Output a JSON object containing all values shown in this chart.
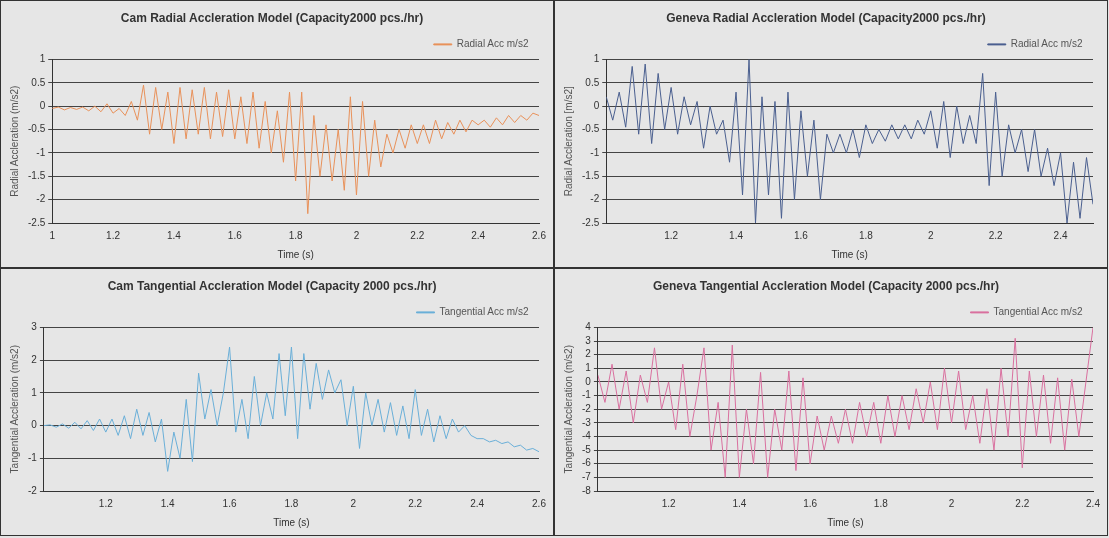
{
  "chart_data": [
    {
      "type": "line",
      "title": "Cam Radial Accleration Model (Capacity2000 pcs./hr)",
      "xlabel": "Time (s)",
      "ylabel": "Radial Accleration (m/s2)",
      "xlim": [
        1,
        2.6
      ],
      "xticks": [
        1,
        1.2,
        1.4,
        1.6,
        1.8,
        2,
        2.2,
        2.4,
        2.6
      ],
      "ylim": [
        -2.5,
        1
      ],
      "yticks": [
        -2.5,
        -2,
        -1.5,
        -1,
        -0.5,
        0,
        0.5,
        1
      ],
      "grid": "y",
      "legend": "top right",
      "marker": "none",
      "x": [
        1,
        1.02,
        1.04,
        1.06,
        1.08,
        1.1,
        1.12,
        1.14,
        1.16,
        1.18,
        1.2,
        1.22,
        1.24,
        1.26,
        1.28,
        1.3,
        1.32,
        1.34,
        1.36,
        1.38,
        1.4,
        1.42,
        1.44,
        1.46,
        1.48,
        1.5,
        1.52,
        1.54,
        1.56,
        1.58,
        1.6,
        1.62,
        1.64,
        1.66,
        1.68,
        1.7,
        1.72,
        1.74,
        1.76,
        1.78,
        1.8,
        1.82,
        1.84,
        1.86,
        1.88,
        1.9,
        1.92,
        1.94,
        1.96,
        1.98,
        2,
        2.02,
        2.04,
        2.06,
        2.08,
        2.1,
        2.12,
        2.14,
        2.16,
        2.18,
        2.2,
        2.22,
        2.24,
        2.26,
        2.28,
        2.3,
        2.32,
        2.34,
        2.36,
        2.38,
        2.4,
        2.42,
        2.44,
        2.46,
        2.48,
        2.5,
        2.52,
        2.54,
        2.56,
        2.58,
        2.6
      ],
      "series": [
        {
          "name": "Radial Acc m/s2",
          "color": "#e8915a",
          "values": [
            -0.05,
            -0.02,
            -0.08,
            -0.03,
            -0.07,
            -0.02,
            -0.1,
            0.0,
            -0.12,
            0.05,
            -0.15,
            -0.05,
            -0.2,
            0.1,
            -0.3,
            0.45,
            -0.6,
            0.4,
            -0.5,
            0.3,
            -0.8,
            0.4,
            -0.7,
            0.35,
            -0.6,
            0.4,
            -0.7,
            0.3,
            -0.65,
            0.35,
            -0.7,
            0.2,
            -0.8,
            0.3,
            -0.9,
            0.1,
            -1.0,
            -0.1,
            -1.2,
            0.3,
            -1.6,
            0.3,
            -2.3,
            -0.2,
            -1.5,
            -0.4,
            -1.6,
            -0.5,
            -1.8,
            0.2,
            -1.9,
            0.1,
            -1.5,
            -0.3,
            -1.3,
            -0.6,
            -1.0,
            -0.5,
            -0.9,
            -0.4,
            -0.8,
            -0.4,
            -0.8,
            -0.3,
            -0.7,
            -0.35,
            -0.6,
            -0.3,
            -0.55,
            -0.3,
            -0.4,
            -0.3,
            -0.45,
            -0.25,
            -0.4,
            -0.2,
            -0.35,
            -0.2,
            -0.3,
            -0.15,
            -0.2
          ]
        }
      ]
    },
    {
      "type": "line",
      "title": "Geneva Radial Accleration Model (Capacity2000 pcs./hr)",
      "xlabel": "Time (s)",
      "ylabel": "Radial Accleration [m/s2]",
      "xlim": [
        1,
        2.5
      ],
      "xticks": [
        1.2,
        1.4,
        1.6,
        1.8,
        2,
        2.2,
        2.4
      ],
      "ylim": [
        -2.5,
        1
      ],
      "yticks": [
        -2.5,
        -2,
        -1.5,
        -1,
        -0.5,
        0,
        0.5,
        1
      ],
      "grid": "y",
      "legend": "top right",
      "marker": "none",
      "x": [
        1,
        1.02,
        1.04,
        1.06,
        1.08,
        1.1,
        1.12,
        1.14,
        1.16,
        1.18,
        1.2,
        1.22,
        1.24,
        1.26,
        1.28,
        1.3,
        1.32,
        1.34,
        1.36,
        1.38,
        1.4,
        1.42,
        1.44,
        1.46,
        1.48,
        1.5,
        1.52,
        1.54,
        1.56,
        1.58,
        1.6,
        1.62,
        1.64,
        1.66,
        1.68,
        1.7,
        1.72,
        1.74,
        1.76,
        1.78,
        1.8,
        1.82,
        1.84,
        1.86,
        1.88,
        1.9,
        1.92,
        1.94,
        1.96,
        1.98,
        2,
        2.02,
        2.04,
        2.06,
        2.08,
        2.1,
        2.12,
        2.14,
        2.16,
        2.18,
        2.2,
        2.22,
        2.24,
        2.26,
        2.28,
        2.3,
        2.32,
        2.34,
        2.36,
        2.38,
        2.4,
        2.42,
        2.44,
        2.46,
        2.48,
        2.5
      ],
      "series": [
        {
          "name": "Radial Acc m/s2",
          "color": "#4a5f8f",
          "values": [
            0.2,
            -0.3,
            0.3,
            -0.45,
            0.85,
            -0.6,
            0.9,
            -0.8,
            0.7,
            -0.5,
            0.4,
            -0.6,
            0.2,
            -0.4,
            0.1,
            -0.9,
            0.0,
            -0.6,
            -0.3,
            -1.2,
            0.3,
            -1.9,
            1.0,
            -2.5,
            0.2,
            -1.9,
            0.1,
            -2.4,
            0.3,
            -2.0,
            -0.1,
            -1.5,
            -0.3,
            -2.0,
            -0.6,
            -1.0,
            -0.6,
            -1.0,
            -0.5,
            -1.1,
            -0.4,
            -0.8,
            -0.5,
            -0.75,
            -0.4,
            -0.7,
            -0.4,
            -0.7,
            -0.3,
            -0.6,
            -0.1,
            -0.9,
            0.1,
            -1.1,
            0.0,
            -0.8,
            -0.2,
            -0.8,
            0.7,
            -1.7,
            0.3,
            -1.5,
            -0.4,
            -1.0,
            -0.5,
            -1.4,
            -0.5,
            -1.5,
            -0.9,
            -1.7,
            -1.0,
            -2.5,
            -1.2,
            -2.4,
            -1.1,
            -2.1
          ]
        }
      ]
    },
    {
      "type": "line",
      "title": "Cam Tangential Accleration Model (Capacity 2000 pcs./hr)",
      "xlabel": "Time (s)",
      "ylabel": "Tangential Accleration (m/s2)",
      "xlim": [
        1,
        2.6
      ],
      "xticks": [
        1.2,
        1.4,
        1.6,
        1.8,
        2,
        2.2,
        2.4,
        2.6
      ],
      "ylim": [
        -2,
        3
      ],
      "yticks": [
        -2,
        -1,
        0,
        1,
        2,
        3
      ],
      "grid": "y",
      "legend": "top right",
      "marker": "none",
      "x": [
        1,
        1.02,
        1.04,
        1.06,
        1.08,
        1.1,
        1.12,
        1.14,
        1.16,
        1.18,
        1.2,
        1.22,
        1.24,
        1.26,
        1.28,
        1.3,
        1.32,
        1.34,
        1.36,
        1.38,
        1.4,
        1.42,
        1.44,
        1.46,
        1.48,
        1.5,
        1.52,
        1.54,
        1.56,
        1.58,
        1.6,
        1.62,
        1.64,
        1.66,
        1.68,
        1.7,
        1.72,
        1.74,
        1.76,
        1.78,
        1.8,
        1.82,
        1.84,
        1.86,
        1.88,
        1.9,
        1.92,
        1.94,
        1.96,
        1.98,
        2,
        2.02,
        2.04,
        2.06,
        2.08,
        2.1,
        2.12,
        2.14,
        2.16,
        2.18,
        2.2,
        2.22,
        2.24,
        2.26,
        2.28,
        2.3,
        2.32,
        2.34,
        2.36,
        2.38,
        2.4,
        2.42,
        2.44,
        2.46,
        2.48,
        2.5,
        2.52,
        2.54,
        2.56,
        2.58,
        2.6
      ],
      "series": [
        {
          "name": "Tangential Acc m/s2",
          "color": "#6aafd8",
          "values": [
            0,
            0.02,
            -0.05,
            0.05,
            -0.08,
            0.1,
            -0.1,
            0.15,
            -0.15,
            0.2,
            -0.2,
            0.2,
            -0.3,
            0.3,
            -0.4,
            0.5,
            -0.3,
            0.4,
            -0.5,
            0.2,
            -1.4,
            -0.2,
            -1.0,
            0.8,
            -1.1,
            1.6,
            0.2,
            1.1,
            0.0,
            1.0,
            2.4,
            -0.2,
            0.8,
            -0.4,
            1.5,
            0.0,
            1.0,
            0.2,
            2.2,
            0.3,
            2.4,
            -0.4,
            2.2,
            0.5,
            1.9,
            0.8,
            1.7,
            1.0,
            1.4,
            0.0,
            1.2,
            -0.7,
            1.0,
            0.0,
            0.8,
            -0.2,
            0.7,
            -0.3,
            0.6,
            -0.4,
            1.1,
            -0.3,
            0.5,
            -0.5,
            0.3,
            -0.4,
            0.2,
            -0.2,
            0.0,
            -0.3,
            -0.4,
            -0.4,
            -0.5,
            -0.45,
            -0.55,
            -0.5,
            -0.65,
            -0.6,
            -0.75,
            -0.7,
            -0.8
          ]
        }
      ]
    },
    {
      "type": "line",
      "title": "Geneva Tangential Accleration Model (Capacity 2000 pcs./hr)",
      "xlabel": "Time (s)",
      "ylabel": "Tangential Accleration (m/s2)",
      "xlim": [
        1,
        2.4
      ],
      "xticks": [
        1.2,
        1.4,
        1.6,
        1.8,
        2,
        2.2,
        2.4
      ],
      "ylim": [
        -8,
        4
      ],
      "yticks": [
        -8,
        -7,
        -6,
        -5,
        -4,
        -3,
        -2,
        -1,
        0,
        1,
        2,
        3,
        4
      ],
      "grid": "y",
      "legend": "top right",
      "marker": "none",
      "x": [
        1,
        1.02,
        1.04,
        1.06,
        1.08,
        1.1,
        1.12,
        1.14,
        1.16,
        1.18,
        1.2,
        1.22,
        1.24,
        1.26,
        1.28,
        1.3,
        1.32,
        1.34,
        1.36,
        1.38,
        1.4,
        1.42,
        1.44,
        1.46,
        1.48,
        1.5,
        1.52,
        1.54,
        1.56,
        1.58,
        1.6,
        1.62,
        1.64,
        1.66,
        1.68,
        1.7,
        1.72,
        1.74,
        1.76,
        1.78,
        1.8,
        1.82,
        1.84,
        1.86,
        1.88,
        1.9,
        1.92,
        1.94,
        1.96,
        1.98,
        2,
        2.02,
        2.04,
        2.06,
        2.08,
        2.1,
        2.12,
        2.14,
        2.16,
        2.18,
        2.2,
        2.22,
        2.24,
        2.26,
        2.28,
        2.3,
        2.32,
        2.34,
        2.36,
        2.38,
        2.4
      ],
      "series": [
        {
          "name": "Tangential Acc m/s2",
          "color": "#d9709f",
          "values": [
            0.5,
            -1.5,
            1.3,
            -2.0,
            0.8,
            -3.0,
            0.5,
            -1.5,
            2.5,
            -2.0,
            0.0,
            -3.5,
            1.3,
            -4.0,
            -1.0,
            2.5,
            -5.0,
            -1.5,
            -7.0,
            2.7,
            -7.0,
            -2.0,
            -6.0,
            0.7,
            -7.0,
            -2.0,
            -5.0,
            0.8,
            -6.5,
            0.3,
            -6.0,
            -2.5,
            -5.0,
            -2.5,
            -4.5,
            -2.0,
            -4.5,
            -1.5,
            -4.0,
            -1.5,
            -4.5,
            -1.0,
            -4.0,
            -1.0,
            -3.5,
            -0.5,
            -3.0,
            0.0,
            -3.5,
            1.0,
            -3.0,
            0.8,
            -3.5,
            -1.0,
            -4.5,
            -0.5,
            -5.0,
            1.0,
            -4.0,
            3.2,
            -6.3,
            0.8,
            -4.0,
            0.5,
            -4.5,
            0.3,
            -5.0,
            0.2,
            -4.0,
            0.0,
            4.0
          ]
        }
      ]
    }
  ]
}
